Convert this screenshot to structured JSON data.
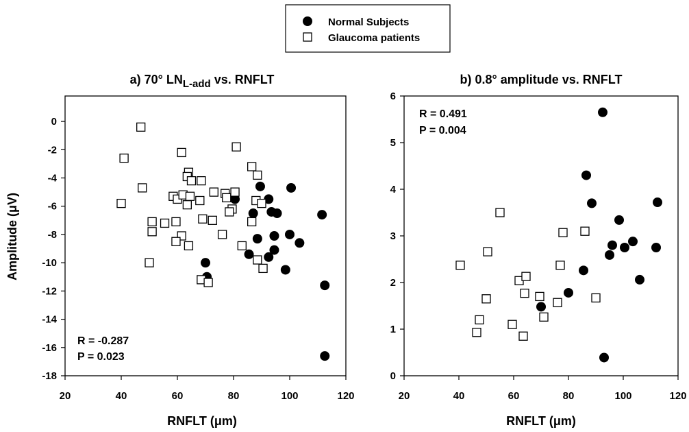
{
  "legend": {
    "normal_label": "Normal Subjects",
    "glaucoma_label": "Glaucoma patients"
  },
  "chart_data": [
    {
      "type": "scatter",
      "title_main": "a) 70° LN",
      "title_sub": "L-add",
      "title_tail": " vs. RNFLT",
      "ylabel": "Amplitude (μV)",
      "xlabel": "RNFLT (μm)",
      "xlim": [
        20,
        120
      ],
      "ylim": [
        -18,
        1.8
      ],
      "xticks": [
        20,
        40,
        60,
        80,
        100,
        120
      ],
      "yticks": [
        -18,
        -16,
        -14,
        -12,
        -10,
        -8,
        -6,
        -4,
        -2,
        0
      ],
      "stats": {
        "r": "R = -0.287",
        "p": "P = 0.023"
      },
      "stats_position": "bottom-left",
      "series": [
        {
          "name": "Normal Subjects",
          "marker": "filled-circle",
          "points": [
            [
              80.5,
              -5.5
            ],
            [
              89.5,
              -4.6
            ],
            [
              92.5,
              -5.5
            ],
            [
              100.5,
              -4.7
            ],
            [
              111.5,
              -6.6
            ],
            [
              87,
              -6.5
            ],
            [
              93.5,
              -6.4
            ],
            [
              95.5,
              -6.5
            ],
            [
              88.5,
              -8.3
            ],
            [
              94.5,
              -8.1
            ],
            [
              100,
              -8.0
            ],
            [
              103.5,
              -8.6
            ],
            [
              94.5,
              -9.1
            ],
            [
              85.5,
              -9.4
            ],
            [
              92.5,
              -9.6
            ],
            [
              70,
              -10.0
            ],
            [
              98.5,
              -10.5
            ],
            [
              70.5,
              -11.0
            ],
            [
              112.5,
              -11.6
            ],
            [
              112.5,
              -16.6
            ]
          ]
        },
        {
          "name": "Glaucoma patients",
          "marker": "open-square",
          "points": [
            [
              47,
              -0.4
            ],
            [
              41,
              -2.6
            ],
            [
              61.5,
              -2.2
            ],
            [
              81,
              -1.8
            ],
            [
              86.5,
              -3.2
            ],
            [
              64,
              -3.6
            ],
            [
              63.5,
              -3.9
            ],
            [
              65,
              -4.2
            ],
            [
              68.5,
              -4.2
            ],
            [
              88.5,
              -3.8
            ],
            [
              47.5,
              -4.7
            ],
            [
              40,
              -5.8
            ],
            [
              58.5,
              -5.3
            ],
            [
              60,
              -5.5
            ],
            [
              62,
              -5.2
            ],
            [
              64.5,
              -5.3
            ],
            [
              68,
              -5.6
            ],
            [
              63.5,
              -5.9
            ],
            [
              73,
              -5.0
            ],
            [
              77,
              -5.1
            ],
            [
              80.5,
              -5.0
            ],
            [
              77.5,
              -5.4
            ],
            [
              79.5,
              -6.2
            ],
            [
              78.5,
              -6.4
            ],
            [
              88,
              -5.6
            ],
            [
              90,
              -5.8
            ],
            [
              59.5,
              -7.1
            ],
            [
              55.5,
              -7.2
            ],
            [
              51,
              -7.1
            ],
            [
              51,
              -7.8
            ],
            [
              69,
              -6.9
            ],
            [
              72.5,
              -7.0
            ],
            [
              76,
              -8.0
            ],
            [
              83,
              -8.8
            ],
            [
              86.5,
              -7.1
            ],
            [
              61.5,
              -8.1
            ],
            [
              59.5,
              -8.5
            ],
            [
              64,
              -8.8
            ],
            [
              50,
              -10.0
            ],
            [
              88.5,
              -9.8
            ],
            [
              90.5,
              -10.4
            ],
            [
              68.5,
              -11.2
            ],
            [
              71,
              -11.4
            ]
          ]
        }
      ]
    },
    {
      "type": "scatter",
      "title_main": "b) 0.8° amplitude vs. RNFLT",
      "title_sub": "",
      "title_tail": "",
      "ylabel": "",
      "xlabel": "RNFLT (μm)",
      "xlim": [
        20,
        120
      ],
      "ylim": [
        0,
        6
      ],
      "xticks": [
        20,
        40,
        60,
        80,
        100,
        120
      ],
      "yticks": [
        0,
        1,
        2,
        3,
        4,
        5,
        6
      ],
      "stats": {
        "r": "R = 0.491",
        "p": "P = 0.004"
      },
      "stats_position": "top-left",
      "series": [
        {
          "name": "Normal Subjects",
          "marker": "filled-circle",
          "points": [
            [
              92.5,
              5.65
            ],
            [
              86.5,
              4.3
            ],
            [
              88.5,
              3.7
            ],
            [
              112.5,
              3.72
            ],
            [
              98.5,
              3.34
            ],
            [
              96,
              2.8
            ],
            [
              100.5,
              2.75
            ],
            [
              103.5,
              2.88
            ],
            [
              95,
              2.59
            ],
            [
              112,
              2.75
            ],
            [
              85.5,
              2.26
            ],
            [
              106,
              2.06
            ],
            [
              80,
              1.78
            ],
            [
              70,
              1.48
            ],
            [
              93,
              0.39
            ]
          ]
        },
        {
          "name": "Glaucoma patients",
          "marker": "open-square",
          "points": [
            [
              55,
              3.5
            ],
            [
              86,
              3.1
            ],
            [
              78,
              3.07
            ],
            [
              50.5,
              2.66
            ],
            [
              40.5,
              2.37
            ],
            [
              77,
              2.37
            ],
            [
              62,
              2.04
            ],
            [
              64.5,
              2.13
            ],
            [
              64,
              1.77
            ],
            [
              69.5,
              1.7
            ],
            [
              76,
              1.57
            ],
            [
              90,
              1.67
            ],
            [
              50,
              1.65
            ],
            [
              71,
              1.26
            ],
            [
              59.5,
              1.1
            ],
            [
              47.5,
              1.2
            ],
            [
              46.5,
              0.93
            ],
            [
              63.5,
              0.85
            ]
          ]
        }
      ]
    }
  ]
}
